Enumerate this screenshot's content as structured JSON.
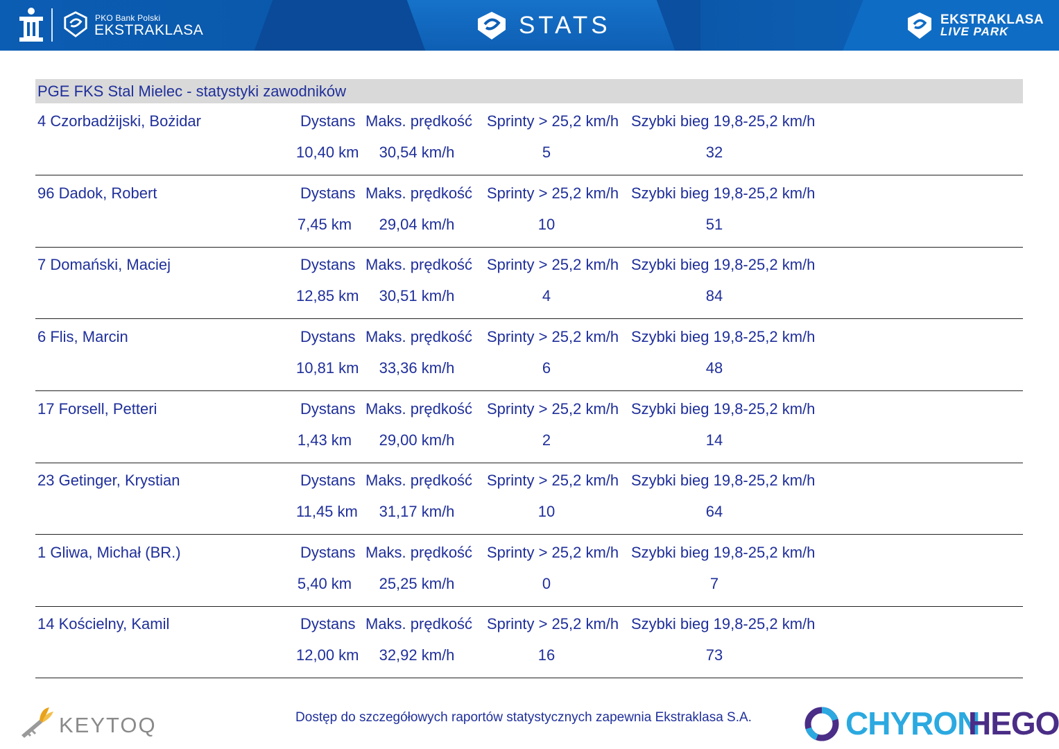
{
  "header": {
    "pko_small": "PKO Bank Polski",
    "pko_big": "EKSTRAKLASA",
    "center_title": "STATS",
    "right_line1": "EKSTRAKLASA",
    "right_line2": "LIVE PARK"
  },
  "table": {
    "title": "PGE FKS Stal Mielec - statystyki zawodników",
    "labels": {
      "distance": "Dystans",
      "max_speed": "Maks. prędkość",
      "sprints": "Sprinty > 25,2 km/h",
      "fast_run": "Szybki bieg 19,8-25,2 km/h"
    },
    "players": [
      {
        "name": "4  Czorbadżijski, Bożidar",
        "distance": "10,40 km",
        "max_speed": "30,54 km/h",
        "sprints": "5",
        "fast_run": "32"
      },
      {
        "name": "96  Dadok, Robert",
        "distance": "7,45 km",
        "max_speed": "29,04 km/h",
        "sprints": "10",
        "fast_run": "51"
      },
      {
        "name": "7  Domański, Maciej",
        "distance": "12,85 km",
        "max_speed": "30,51 km/h",
        "sprints": "4",
        "fast_run": "84"
      },
      {
        "name": "6  Flis, Marcin",
        "distance": "10,81 km",
        "max_speed": "33,36 km/h",
        "sprints": "6",
        "fast_run": "48"
      },
      {
        "name": "17  Forsell, Petteri",
        "distance": "1,43 km",
        "max_speed": "29,00 km/h",
        "sprints": "2",
        "fast_run": "14"
      },
      {
        "name": "23  Getinger, Krystian",
        "distance": "11,45 km",
        "max_speed": "31,17 km/h",
        "sprints": "10",
        "fast_run": "64"
      },
      {
        "name": "1  Gliwa, Michał (BR.)",
        "distance": "5,40 km",
        "max_speed": "25,25 km/h",
        "sprints": "0",
        "fast_run": "7"
      },
      {
        "name": "14  Kościelny, Kamil",
        "distance": "12,00 km",
        "max_speed": "32,92 km/h",
        "sprints": "16",
        "fast_run": "73"
      }
    ]
  },
  "footer": {
    "note": "Dostęp do szczegółowych raportów statystycznych zapewnia Ekstraklasa S.A.",
    "left_logo_text": "KEYTOQ",
    "right_logo_part1": "CHYRON",
    "right_logo_part2": "HEGO"
  },
  "colors": {
    "header_blue": "#0a4fa0",
    "text_blue": "#1f2f9a",
    "title_bar_grey": "#d9d9d9",
    "chyron_cyan": "#2ba9e0",
    "chyron_purple": "#4a2d86"
  }
}
